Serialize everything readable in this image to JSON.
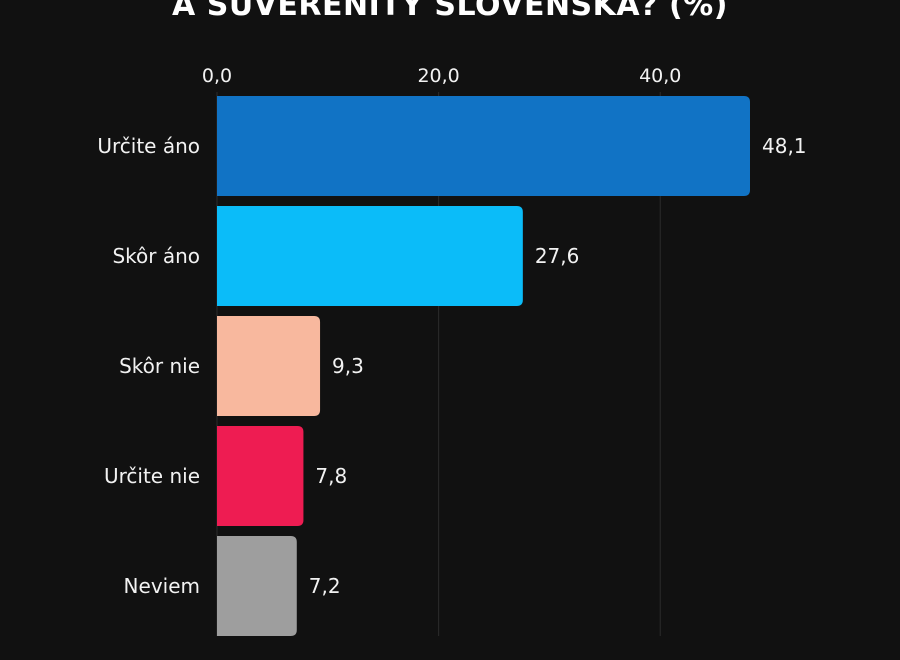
{
  "chart_data": {
    "type": "bar",
    "orientation": "horizontal",
    "title": "A SUVERENITY SLOVENSKA? (%)",
    "categories": [
      "Určite áno",
      "Skôr áno",
      "Skôr nie",
      "Určite nie",
      "Neviem"
    ],
    "values": [
      48.1,
      27.6,
      9.3,
      7.8,
      7.2
    ],
    "value_labels": [
      "48,1",
      "27,6",
      "9,3",
      "7,8",
      "7,2"
    ],
    "colors": [
      "#1173c5",
      "#0bbcf9",
      "#f8b89e",
      "#ee1c52",
      "#9e9e9e"
    ],
    "xticks": [
      0,
      20,
      40
    ],
    "xtick_labels": [
      "0,0",
      "20,0",
      "40,0"
    ],
    "xlim": [
      0,
      48.1
    ],
    "xaxis_position": "top",
    "grid": true,
    "xlabel": "",
    "ylabel": ""
  }
}
